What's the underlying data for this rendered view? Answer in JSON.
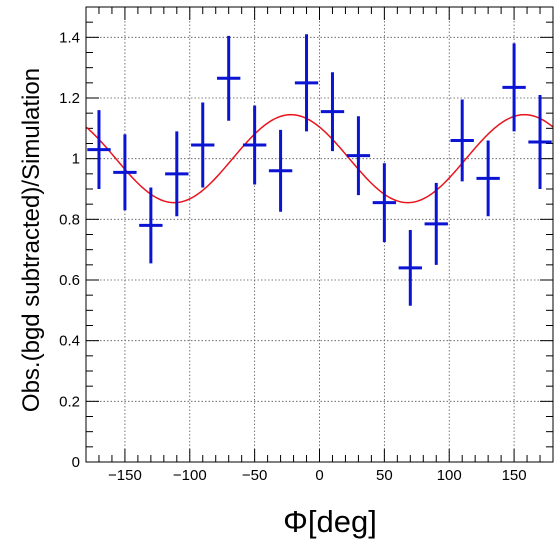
{
  "chart_data": {
    "type": "scatter",
    "xlabel": "Φ[deg]",
    "ylabel": "Obs.(bgd subtracted)/Simulation",
    "xlim": [
      -180,
      180
    ],
    "ylim": [
      0,
      1.5
    ],
    "grid": true,
    "x_ticks": [
      -150,
      -100,
      -50,
      0,
      50,
      100,
      150
    ],
    "x_tick_labels": [
      "−150",
      "−100",
      "−50",
      "0",
      "50",
      "100",
      "150"
    ],
    "y_ticks": [
      0,
      0.2,
      0.4,
      0.6,
      0.8,
      1,
      1.2,
      1.4
    ],
    "y_tick_labels": [
      "0",
      "0.2",
      "0.4",
      "0.6",
      "0.8",
      "1",
      "1.2",
      "1.4"
    ],
    "series": [
      {
        "type": "errorbar",
        "color": "#0a14d2",
        "bin_half_width": 9,
        "points": [
          {
            "x": -170,
            "y": 1.03,
            "err": 0.13
          },
          {
            "x": -150,
            "y": 0.955,
            "err": 0.125
          },
          {
            "x": -130,
            "y": 0.78,
            "err": 0.125
          },
          {
            "x": -110,
            "y": 0.95,
            "err": 0.14
          },
          {
            "x": -90,
            "y": 1.045,
            "err": 0.14
          },
          {
            "x": -70,
            "y": 1.265,
            "err": 0.14
          },
          {
            "x": -50,
            "y": 1.045,
            "err": 0.13
          },
          {
            "x": -30,
            "y": 0.96,
            "err": 0.135
          },
          {
            "x": -10,
            "y": 1.25,
            "err": 0.16
          },
          {
            "x": 10,
            "y": 1.155,
            "err": 0.13
          },
          {
            "x": 30,
            "y": 1.01,
            "err": 0.13
          },
          {
            "x": 50,
            "y": 0.855,
            "err": 0.13
          },
          {
            "x": 70,
            "y": 0.64,
            "err": 0.125
          },
          {
            "x": 90,
            "y": 0.785,
            "err": 0.135
          },
          {
            "x": 110,
            "y": 1.06,
            "err": 0.135
          },
          {
            "x": 130,
            "y": 0.935,
            "err": 0.125
          },
          {
            "x": 150,
            "y": 1.235,
            "err": 0.145
          },
          {
            "x": 170,
            "y": 1.055,
            "err": 0.155
          }
        ]
      },
      {
        "type": "fit",
        "color": "#e8141e",
        "model": "y = 1 + 0.145 * cos(2*(x + 22))",
        "offset": 1.0,
        "amplitude": 0.145,
        "frequency": 2,
        "phase_deg": 22
      }
    ]
  }
}
